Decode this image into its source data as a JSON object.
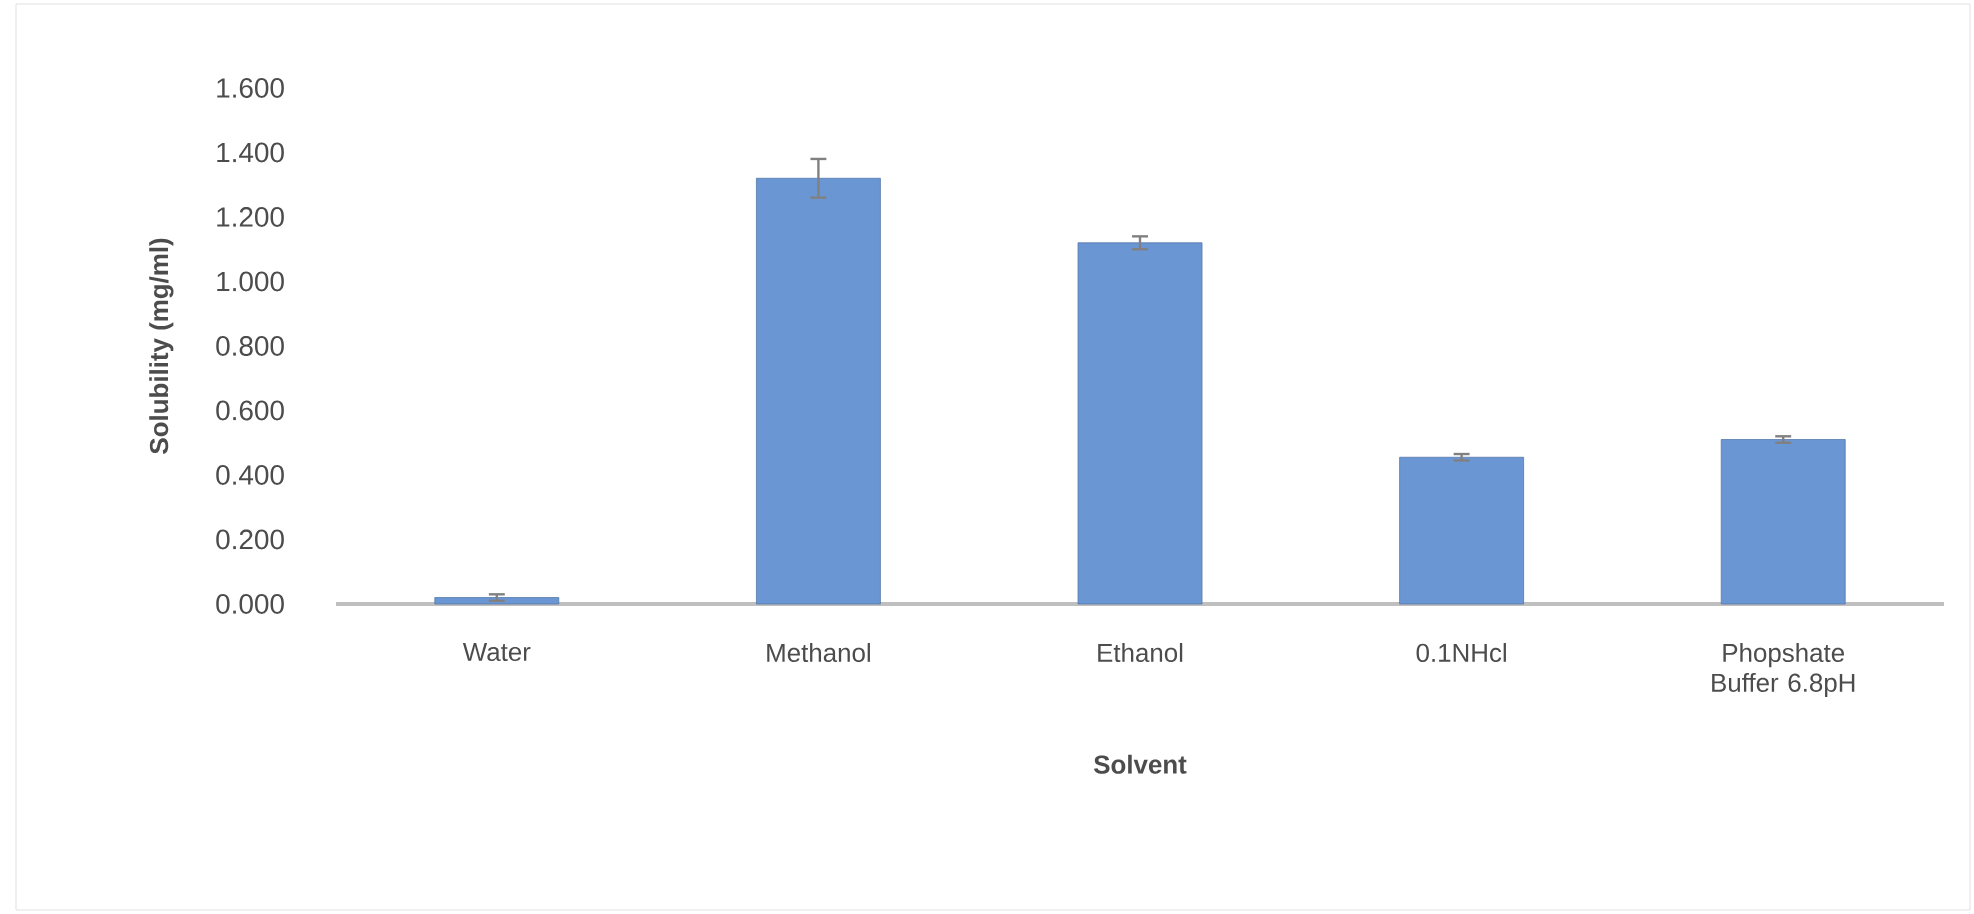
{
  "chart_data": {
    "type": "bar",
    "xlabel": "Solvent",
    "ylabel": "Solubility (mg/ml)",
    "categories": [
      "Water",
      "Methanol",
      "Ethanol",
      "0.1NHcl",
      "Phopshate Buffer 6.8pH"
    ],
    "values": [
      0.02,
      1.32,
      1.12,
      0.455,
      0.51
    ],
    "errors": [
      0.01,
      0.06,
      0.02,
      0.01,
      0.01
    ],
    "color": "#6a96d4",
    "ylim": [
      0,
      1.6
    ],
    "yticks": [
      {
        "value": 0,
        "label": "0.000"
      },
      {
        "value": 0.2,
        "label": "0.200"
      },
      {
        "value": 0.4,
        "label": "0.400"
      },
      {
        "value": 0.6,
        "label": "0.600"
      },
      {
        "value": 0.8,
        "label": "0.800"
      },
      {
        "value": 1.0,
        "label": "1.000"
      },
      {
        "value": 1.2,
        "label": "1.200"
      },
      {
        "value": 1.4,
        "label": "1.400"
      },
      {
        "value": 1.6,
        "label": "1.600"
      }
    ],
    "grid": false,
    "legend": false
  }
}
